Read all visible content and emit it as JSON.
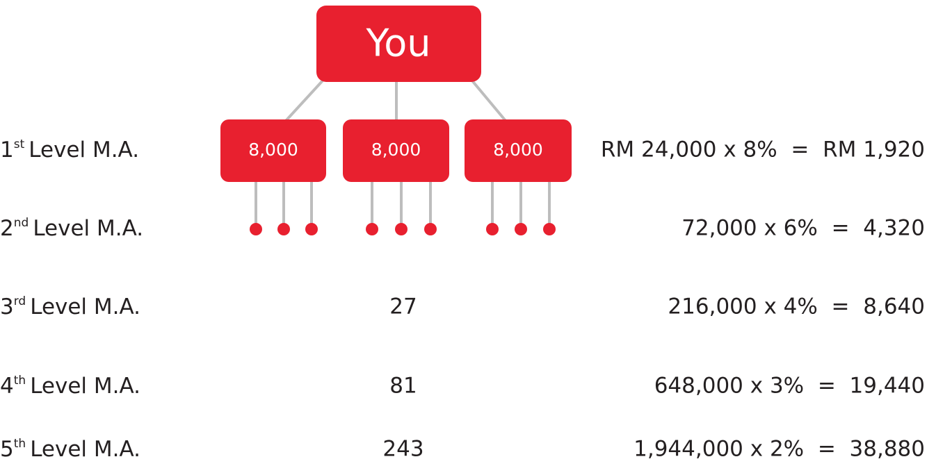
{
  "tree": {
    "root": "You",
    "children": [
      "8,000",
      "8,000",
      "8,000"
    ]
  },
  "levels": [
    {
      "number": "1",
      "suffix": "st",
      "label": "Level M.A.",
      "calculation": "RM 24,000 x 8%  =  RM 1,920"
    },
    {
      "number": "2",
      "suffix": "nd",
      "label": "Level M.A.",
      "calculation": "72,000 x 6%  =  4,320"
    },
    {
      "number": "3",
      "suffix": "rd",
      "label": "Level M.A.",
      "count": "27",
      "calculation": "216,000 x 4%  =  8,640"
    },
    {
      "number": "4",
      "suffix": "th",
      "label": "Level M.A.",
      "count": "81",
      "calculation": "648,000 x 3%  =  19,440"
    },
    {
      "number": "5",
      "suffix": "th",
      "label": "Level M.A.",
      "count": "243",
      "calculation": "1,944,000 x 2%  =  38,880"
    }
  ]
}
